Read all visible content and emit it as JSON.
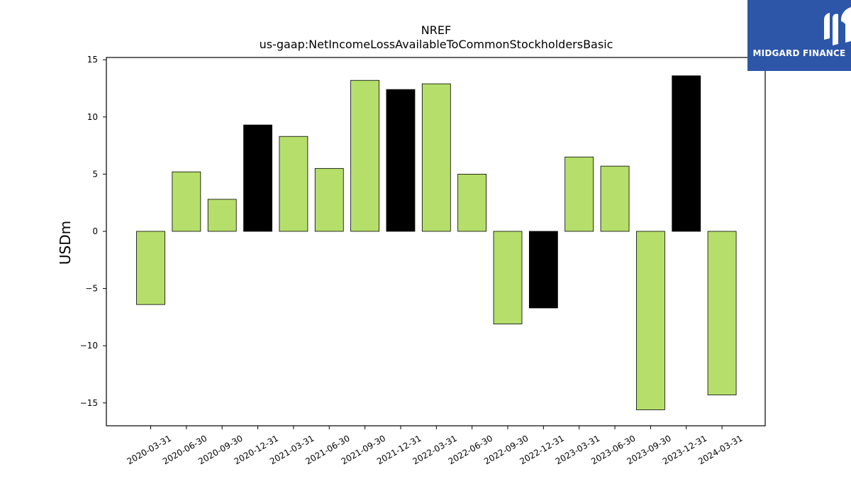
{
  "logo": {
    "text": "MIDGARD FINANCE",
    "background": "#2d56a8"
  },
  "colors": {
    "positive_default": "#b5df6a",
    "highlight": "#000000",
    "edge": "#000000"
  },
  "chart_data": {
    "type": "bar",
    "title": "NREF",
    "subtitle": "us-gaap:NetIncomeLossAvailableToCommonStockholdersBasic",
    "xlabel": "",
    "ylabel": "USDm",
    "ylim": [
      -17,
      15.2
    ],
    "yticks": [
      15,
      10,
      5,
      0,
      -5,
      -10,
      -15
    ],
    "ytick_labels": [
      "15",
      "10",
      "5",
      "0",
      "−5",
      "−10",
      "−15"
    ],
    "grid": false,
    "categories": [
      "2020-03-31",
      "2020-06-30",
      "2020-09-30",
      "2020-12-31",
      "2021-03-31",
      "2021-06-30",
      "2021-09-30",
      "2021-12-31",
      "2022-03-31",
      "2022-06-30",
      "2022-09-30",
      "2022-12-31",
      "2023-03-31",
      "2023-06-30",
      "2023-09-30",
      "2023-12-31",
      "2024-03-31"
    ],
    "values": [
      -6.4,
      5.2,
      2.8,
      9.3,
      8.3,
      5.5,
      13.2,
      12.4,
      12.9,
      5.0,
      -8.1,
      -6.7,
      6.5,
      5.7,
      -15.6,
      13.6,
      -14.3
    ],
    "bar_colors": [
      "#b5df6a",
      "#b5df6a",
      "#b5df6a",
      "#000000",
      "#b5df6a",
      "#b5df6a",
      "#b5df6a",
      "#000000",
      "#b5df6a",
      "#b5df6a",
      "#b5df6a",
      "#000000",
      "#b5df6a",
      "#b5df6a",
      "#b5df6a",
      "#000000",
      "#b5df6a"
    ]
  }
}
